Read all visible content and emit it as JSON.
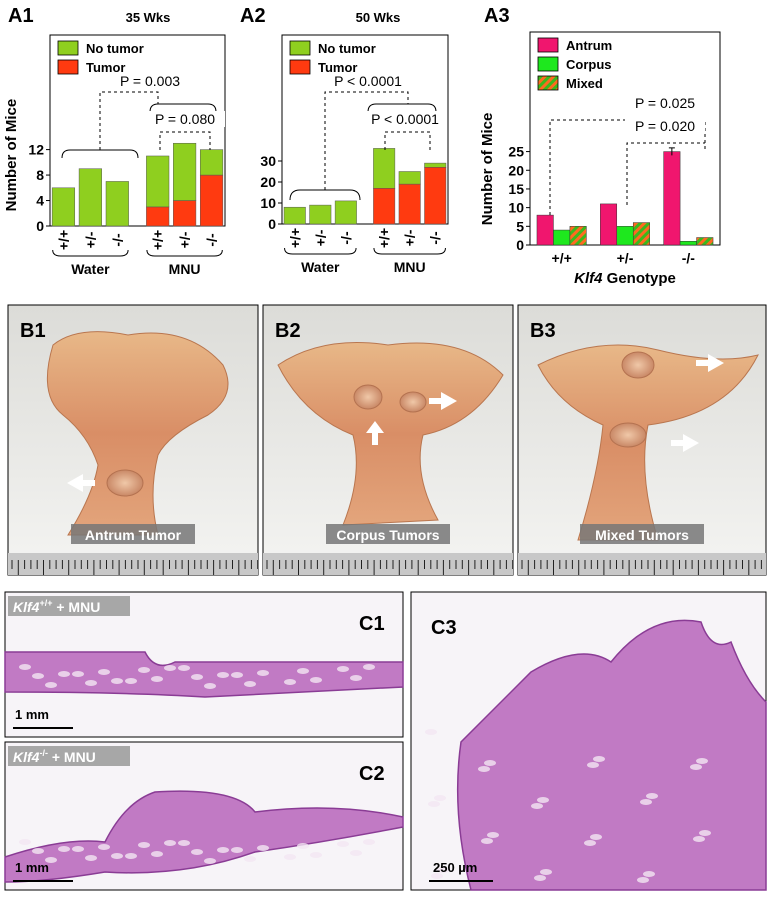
{
  "chart_data": [
    {
      "panel": "A1",
      "type": "stacked_bar",
      "title": "35 Wks",
      "y_label": "Number of Mice",
      "groups": [
        {
          "label": "Water",
          "categories": [
            "+/+",
            "+/-",
            "-/-"
          ]
        },
        {
          "label": "MNU",
          "categories": [
            "+/+",
            "+/-",
            "-/-"
          ]
        }
      ],
      "series": [
        {
          "name": "No tumor",
          "color": "#8fcf1f",
          "values": [
            6,
            9,
            7,
            8,
            9,
            4
          ]
        },
        {
          "name": "Tumor",
          "color": "#ff3a10",
          "values": [
            0,
            0,
            0,
            3,
            4,
            8
          ]
        }
      ],
      "ylim": [
        0,
        30
      ],
      "yticks": [
        0,
        4,
        8,
        12
      ],
      "annotations": [
        "P = 0.003",
        "P = 0.080"
      ]
    },
    {
      "panel": "A2",
      "type": "stacked_bar",
      "title": "50 Wks",
      "y_label": "",
      "groups": [
        {
          "label": "Water",
          "categories": [
            "+/+",
            "+/-",
            "-/-"
          ]
        },
        {
          "label": "MNU",
          "categories": [
            "+/+",
            "+/-",
            "-/-"
          ]
        }
      ],
      "series": [
        {
          "name": "No tumor",
          "color": "#8fcf1f",
          "values": [
            8,
            9,
            11,
            19,
            6,
            2
          ]
        },
        {
          "name": "Tumor",
          "color": "#ff3a10",
          "values": [
            0,
            0,
            0,
            17,
            19,
            27
          ]
        }
      ],
      "ylim": [
        0,
        90
      ],
      "yticks": [
        0,
        10,
        20,
        30
      ],
      "annotations": [
        "P < 0.0001",
        "P < 0.0001"
      ]
    },
    {
      "panel": "A3",
      "type": "grouped_bar",
      "y_label": "Number of Mice",
      "x_label": {
        "gene": "Klf4",
        "text": "Genotype"
      },
      "categories": [
        "+/+",
        "+/-",
        "-/-"
      ],
      "series": [
        {
          "name": "Antrum",
          "color": "#f0166e",
          "values": [
            8,
            11,
            25
          ],
          "errors": [
            null,
            null,
            1
          ]
        },
        {
          "name": "Corpus",
          "color": "#1ee81e",
          "values": [
            4,
            5,
            1
          ]
        },
        {
          "name": "Mixed",
          "color": "#3cb81c",
          "hatch": "#ff6a20",
          "values": [
            5,
            6,
            2
          ]
        }
      ],
      "ylim": [
        0,
        57
      ],
      "yticks": [
        0,
        5,
        10,
        15,
        20,
        25
      ],
      "annotations": [
        "P = 0.025",
        "P = 0.020"
      ]
    }
  ],
  "panels_b": [
    {
      "label": "B1",
      "caption": "Antrum Tumor"
    },
    {
      "label": "B2",
      "caption": "Corpus Tumors"
    },
    {
      "label": "B3",
      "caption": "Mixed Tumors"
    }
  ],
  "panels_c": [
    {
      "label": "C1",
      "tag": {
        "gene": "Klf4",
        "genotype": "+/+",
        "treatment": " + MNU"
      },
      "scale": "1 mm"
    },
    {
      "label": "C2",
      "tag": {
        "gene": "Klf4",
        "genotype": "-/-",
        "treatment": " + MNU"
      },
      "scale": "1 mm"
    },
    {
      "label": "C3",
      "scale": "250 µm"
    }
  ]
}
